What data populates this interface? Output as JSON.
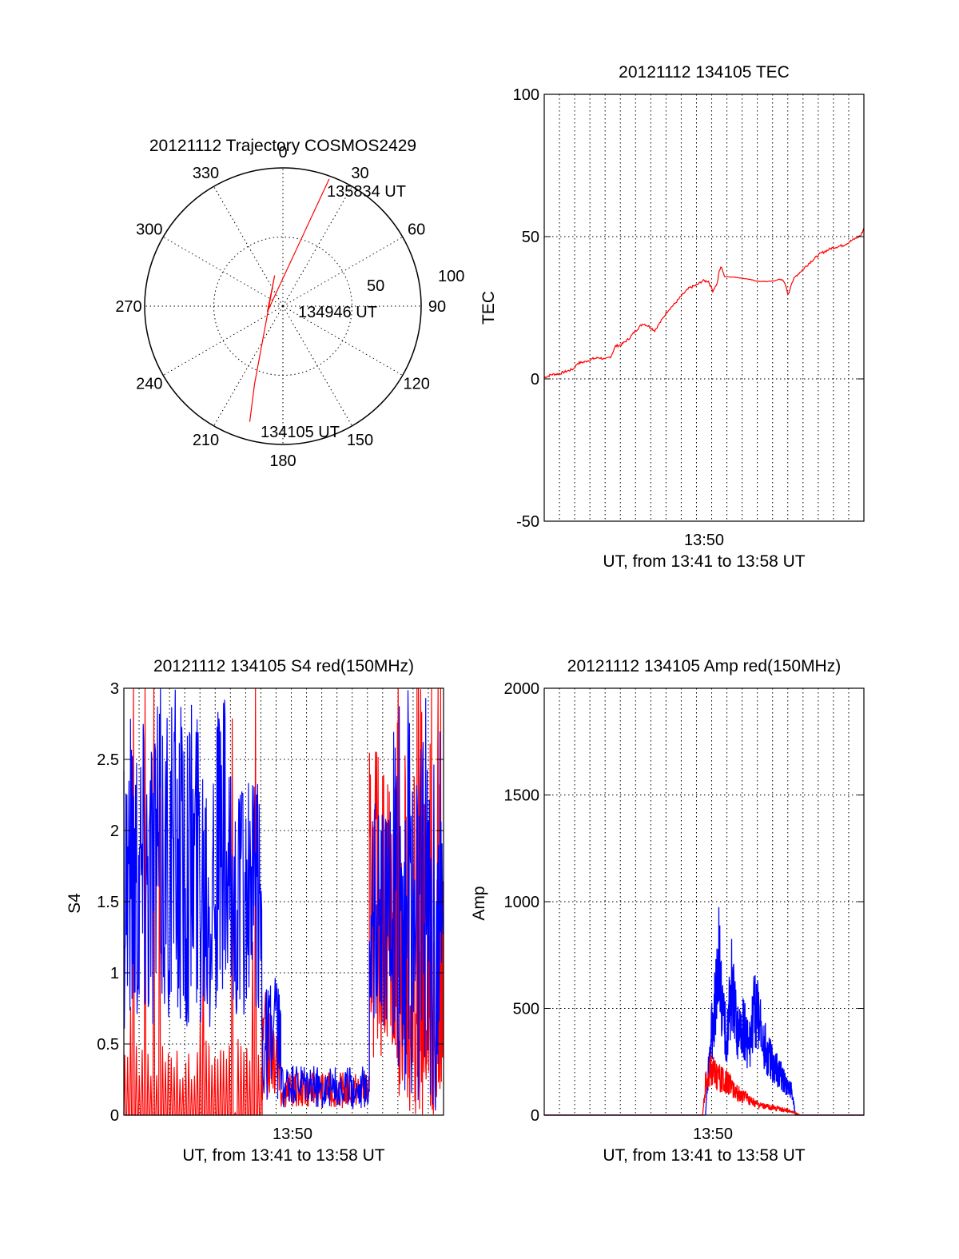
{
  "colors": {
    "red": "#ff0000",
    "blue": "#0000ff",
    "axis": "#000000",
    "background": "#ffffff"
  },
  "chart_data": [
    {
      "id": "polar",
      "type": "polar",
      "title": "20121112 Trajectory COSMOS2429",
      "angle_labels": [
        "0",
        "30",
        "60",
        "90",
        "120",
        "150",
        "180",
        "210",
        "240",
        "270",
        "300",
        "330"
      ],
      "radial_labels": [
        "50",
        "100"
      ],
      "trajectory_points": [
        [
          20,
          98
        ],
        [
          250,
          12
        ],
        [
          345,
          23
        ],
        [
          200,
          60
        ],
        [
          196,
          87
        ]
      ],
      "annotations": {
        "start": "134105 UT",
        "mid": "134946 UT",
        "end": "135834 UT"
      },
      "grid": true
    },
    {
      "id": "tec",
      "type": "line",
      "title": "20121112 134105 TEC",
      "xlabel": "UT, from 13:41 to 13:58 UT",
      "ylabel": "TEC",
      "x_tick_labels": [
        "13:50"
      ],
      "y_tick_labels": [
        "-50",
        "0",
        "50",
        "100"
      ],
      "ylim": [
        -50,
        100
      ],
      "grid": true,
      "series": [
        {
          "color": "#ff0000",
          "points": [
            [
              0,
              0.5
            ],
            [
              0.5,
              1.5
            ],
            [
              1,
              1.8
            ],
            [
              1.5,
              2.6
            ],
            [
              2,
              3.5
            ],
            [
              2.3,
              5.5
            ],
            [
              2.8,
              6
            ],
            [
              3.3,
              7
            ],
            [
              3.8,
              7.5
            ],
            [
              4.2,
              6.8
            ],
            [
              4.6,
              8
            ],
            [
              4.9,
              11.5
            ],
            [
              5.3,
              12
            ],
            [
              5.8,
              14
            ],
            [
              6.3,
              17
            ],
            [
              6.8,
              19.5
            ],
            [
              7.2,
              18.5
            ],
            [
              7.6,
              17
            ],
            [
              8,
              20
            ],
            [
              8.5,
              24
            ],
            [
              9,
              26.5
            ],
            [
              9.5,
              29.5
            ],
            [
              10,
              32
            ],
            [
              10.5,
              33
            ],
            [
              10.9,
              34.5
            ],
            [
              11.3,
              34.3
            ],
            [
              11.6,
              31
            ],
            [
              11.9,
              33.5
            ],
            [
              12.05,
              38
            ],
            [
              12.2,
              39.5
            ],
            [
              12.4,
              36
            ],
            [
              13.2,
              35.7
            ],
            [
              14,
              35.1
            ],
            [
              14.7,
              34.3
            ],
            [
              15.3,
              34.2
            ],
            [
              15.9,
              34.5
            ],
            [
              16.3,
              35.3
            ],
            [
              16.6,
              33
            ],
            [
              16.8,
              29.5
            ],
            [
              17,
              33.5
            ],
            [
              17.3,
              36
            ],
            [
              17.7,
              38
            ],
            [
              18.3,
              41
            ],
            [
              19,
              44
            ],
            [
              19.8,
              46
            ],
            [
              20.6,
              47
            ],
            [
              21.3,
              49
            ],
            [
              21.8,
              50.5
            ],
            [
              22,
              53
            ]
          ]
        }
      ]
    },
    {
      "id": "s4",
      "type": "line",
      "title": "20121112 134105 S4 red(150MHz)",
      "xlabel": "UT, from 13:41 to 13:58 UT",
      "ylabel": "S4",
      "x_tick_labels": [
        "13:50"
      ],
      "y_tick_labels": [
        "0",
        "0.5",
        "1",
        "1.5",
        "2",
        "2.5",
        "3"
      ],
      "ylim": [
        0,
        3
      ],
      "grid": true,
      "series": [
        {
          "color": "#0000ff",
          "regions": [
            [
              0,
              7,
              "high",
              0.6,
              3.0
            ],
            [
              7,
              9.5,
              "high",
              0.6,
              2.4
            ],
            [
              9.5,
              10.8,
              "mid",
              0.1,
              1.0
            ],
            [
              10.8,
              16.9,
              "low",
              0.05,
              0.35
            ],
            [
              16.9,
              18.5,
              "mid",
              0.6,
              2.2
            ],
            [
              18.5,
              22,
              "high",
              0.0,
              3.0
            ]
          ]
        },
        {
          "color": "#ff0000",
          "regions": [
            [
              0,
              9.5,
              "sparse",
              0,
              3
            ],
            [
              9.5,
              10.8,
              "mid",
              0.1,
              0.9
            ],
            [
              10.8,
              16.9,
              "low",
              0.05,
              0.3
            ],
            [
              16.9,
              18.5,
              "mid",
              0.4,
              2.6
            ],
            [
              18.5,
              22,
              "dense",
              0,
              3
            ]
          ]
        }
      ]
    },
    {
      "id": "amp",
      "type": "line",
      "title": "20121112 134105 Amp red(150MHz)",
      "xlabel": "UT, from 13:41 to 13:58 UT",
      "ylabel": "Amp",
      "x_tick_labels": [
        "13:50"
      ],
      "y_tick_labels": [
        "0",
        "500",
        "1000",
        "1500",
        "2000"
      ],
      "ylim": [
        0,
        2000
      ],
      "grid": true,
      "series": [
        {
          "color": "#0000ff",
          "points": [
            [
              0,
              0
            ],
            [
              11.1,
              0
            ],
            [
              11.3,
              300
            ],
            [
              11.7,
              700
            ],
            [
              12.0,
              1040
            ],
            [
              12.3,
              600
            ],
            [
              12.6,
              500
            ],
            [
              12.9,
              840
            ],
            [
              13.3,
              500
            ],
            [
              13.7,
              600
            ],
            [
              14.1,
              420
            ],
            [
              14.5,
              700
            ],
            [
              14.9,
              560
            ],
            [
              15.3,
              400
            ],
            [
              15.8,
              320
            ],
            [
              16.4,
              240
            ],
            [
              17.0,
              160
            ],
            [
              17.3,
              0
            ],
            [
              22,
              0
            ]
          ]
        },
        {
          "color": "#ff0000",
          "points": [
            [
              0,
              0
            ],
            [
              10.9,
              0
            ],
            [
              11.1,
              200
            ],
            [
              11.5,
              300
            ],
            [
              11.9,
              250
            ],
            [
              12.3,
              230
            ],
            [
              12.8,
              200
            ],
            [
              13.3,
              140
            ],
            [
              13.8,
              120
            ],
            [
              14.3,
              80
            ],
            [
              14.9,
              60
            ],
            [
              15.5,
              50
            ],
            [
              16.2,
              40
            ],
            [
              16.8,
              30
            ],
            [
              17.2,
              15
            ],
            [
              17.5,
              5
            ],
            [
              17.6,
              0
            ],
            [
              22,
              0
            ]
          ]
        }
      ]
    }
  ]
}
